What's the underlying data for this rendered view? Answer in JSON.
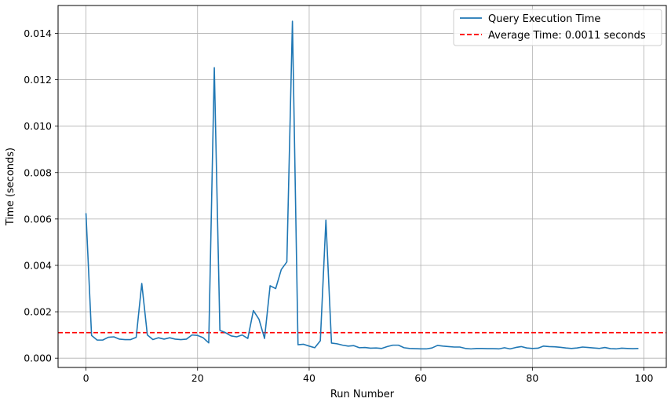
{
  "chart_data": {
    "type": "line",
    "title": "",
    "xlabel": "Run Number",
    "ylabel": "Time (seconds)",
    "xlim": [
      -5,
      104
    ],
    "ylim": [
      -0.0004,
      0.0152
    ],
    "x_ticks": [
      0,
      20,
      40,
      60,
      80,
      100
    ],
    "y_ticks": [
      0.0,
      0.002,
      0.004,
      0.006,
      0.008,
      0.01,
      0.012,
      0.014
    ],
    "y_tick_labels": [
      "0.000",
      "0.002",
      "0.004",
      "0.006",
      "0.008",
      "0.010",
      "0.012",
      "0.014"
    ],
    "grid": true,
    "legend_position": "upper-right",
    "series": [
      {
        "name": "Query Execution Time",
        "color": "#1f77b4",
        "style": "solid",
        "x": [
          0,
          1,
          2,
          3,
          4,
          5,
          6,
          7,
          8,
          9,
          10,
          11,
          12,
          13,
          14,
          15,
          16,
          17,
          18,
          19,
          20,
          21,
          22,
          23,
          24,
          25,
          26,
          27,
          28,
          29,
          30,
          31,
          32,
          33,
          34,
          35,
          36,
          37,
          38,
          39,
          40,
          41,
          42,
          43,
          44,
          45,
          46,
          47,
          48,
          49,
          50,
          51,
          52,
          53,
          54,
          55,
          56,
          57,
          58,
          59,
          60,
          61,
          62,
          63,
          64,
          65,
          66,
          67,
          68,
          69,
          70,
          71,
          72,
          73,
          74,
          75,
          76,
          77,
          78,
          79,
          80,
          81,
          82,
          83,
          84,
          85,
          86,
          87,
          88,
          89,
          90,
          91,
          92,
          93,
          94,
          95,
          96,
          97,
          98,
          99
        ],
        "y": [
          0.00625,
          0.00098,
          0.00078,
          0.00078,
          0.0009,
          0.00092,
          0.00082,
          0.0008,
          0.0008,
          0.0009,
          0.00322,
          0.001,
          0.0008,
          0.00088,
          0.00082,
          0.00088,
          0.00082,
          0.0008,
          0.00082,
          0.001,
          0.00098,
          0.00088,
          0.00066,
          0.01252,
          0.0012,
          0.0011,
          0.00096,
          0.00092,
          0.001,
          0.00085,
          0.00205,
          0.00168,
          0.00085,
          0.00312,
          0.003,
          0.00382,
          0.00415,
          0.01452,
          0.00058,
          0.0006,
          0.00052,
          0.00045,
          0.00075,
          0.00595,
          0.00065,
          0.00062,
          0.00056,
          0.00052,
          0.00054,
          0.00045,
          0.00046,
          0.00043,
          0.00044,
          0.00042,
          0.0005,
          0.00056,
          0.00056,
          0.00045,
          0.00042,
          0.00041,
          0.0004,
          0.0004,
          0.00044,
          0.00055,
          0.00052,
          0.0005,
          0.00048,
          0.00048,
          0.00042,
          0.0004,
          0.00042,
          0.00042,
          0.00041,
          0.00041,
          0.0004,
          0.00045,
          0.0004,
          0.00046,
          0.0005,
          0.00044,
          0.00042,
          0.00043,
          0.00052,
          0.0005,
          0.00049,
          0.00047,
          0.00044,
          0.00042,
          0.00044,
          0.00048,
          0.00046,
          0.00044,
          0.00042,
          0.00046,
          0.00041,
          0.0004,
          0.00043,
          0.00042,
          0.00041,
          0.00042
        ]
      },
      {
        "name": "Average Time: 0.0011 seconds",
        "color": "#ff0000",
        "style": "dashed",
        "y_constant": 0.0011
      }
    ]
  }
}
